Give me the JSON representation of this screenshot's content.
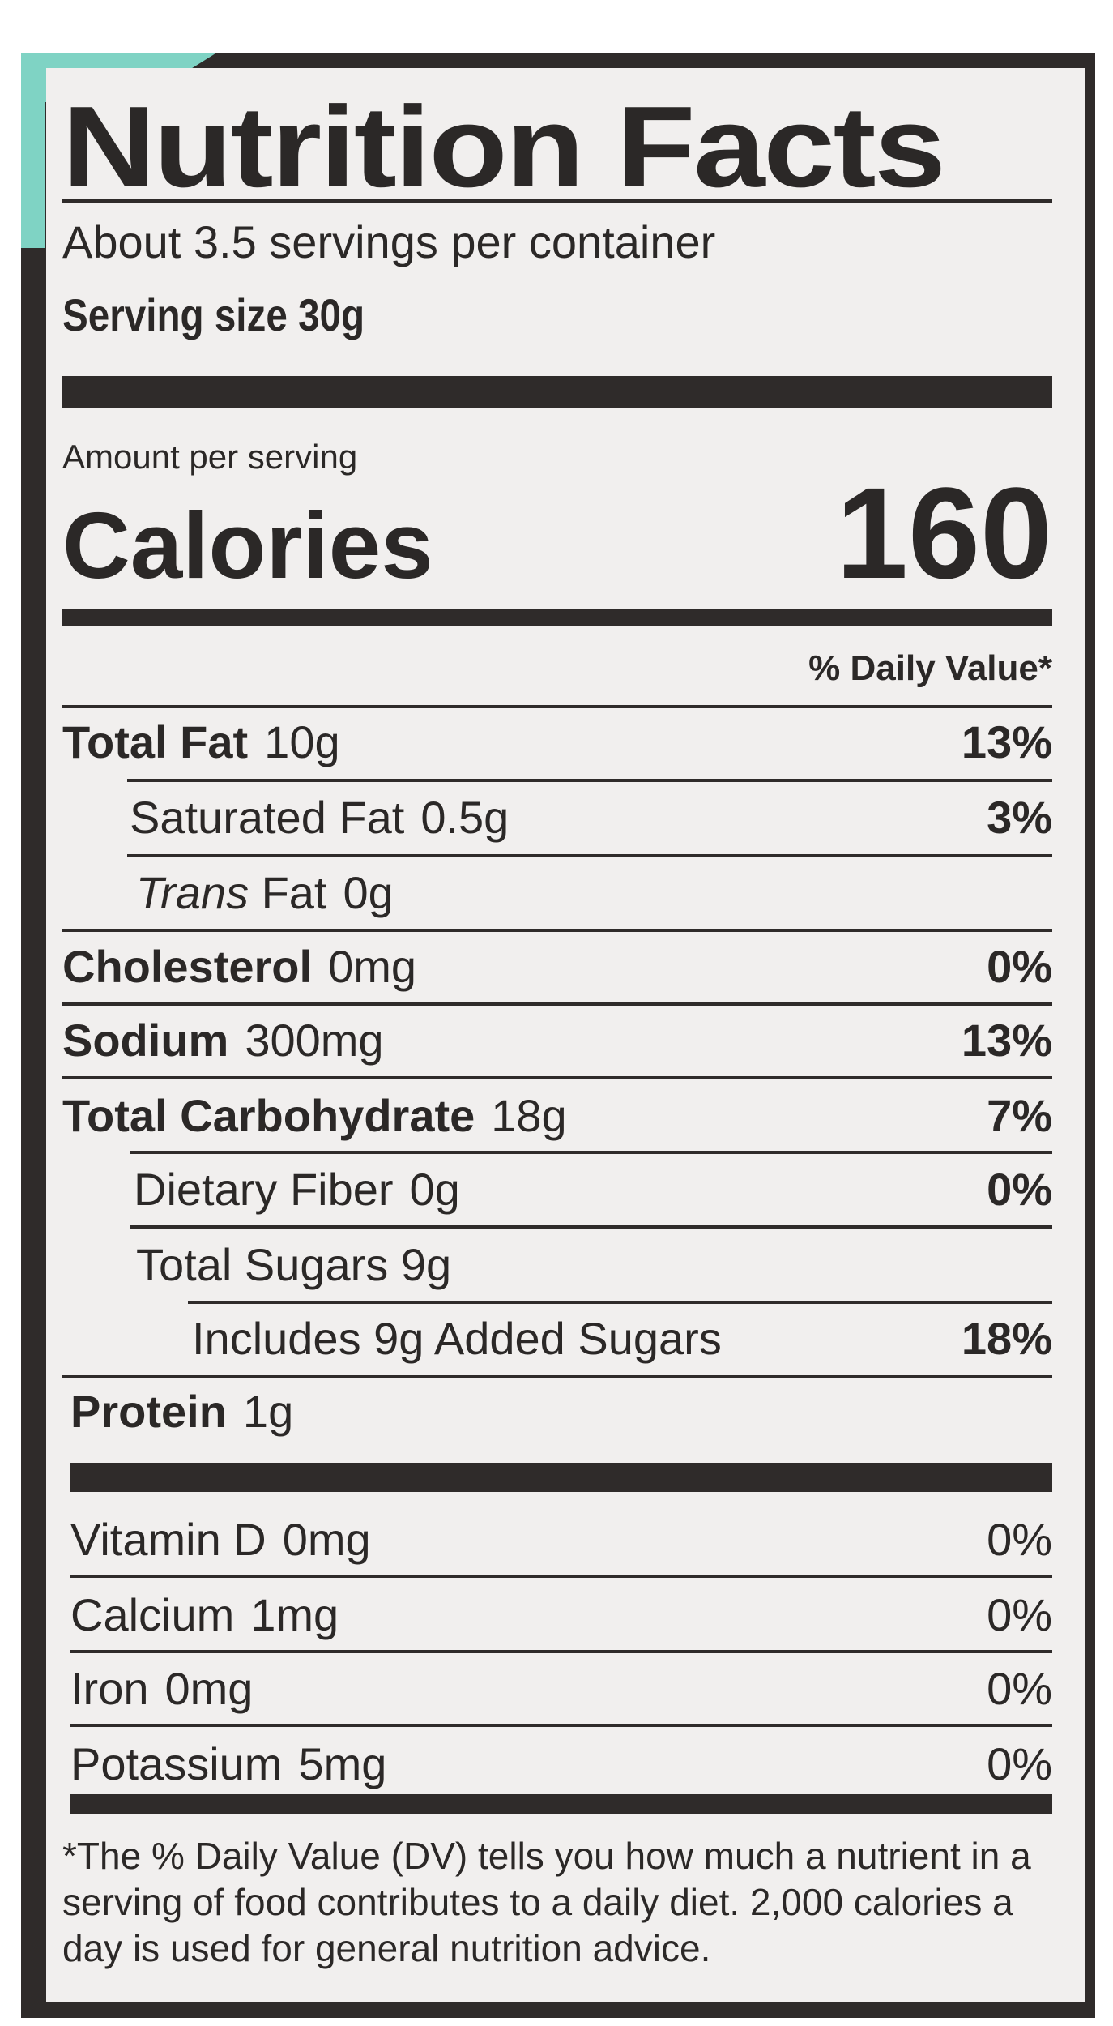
{
  "label": {
    "title": "Nutrition Facts",
    "servings_per_container": "About 3.5 servings per container",
    "serving_size": "Serving size 30g",
    "amount_per_serving": "Amount per serving",
    "calories_label": "Calories",
    "calories_value": "160",
    "daily_value_header": "% Daily Value*",
    "nutrients": [
      {
        "name": "Total Fat",
        "amount": "10g",
        "dv": "13%"
      },
      {
        "name": "Saturated Fat",
        "amount": "0.5g",
        "dv": "3%"
      },
      {
        "name_italic": "Trans",
        "name": "Fat",
        "amount": "0g"
      },
      {
        "name": "Cholesterol",
        "amount": "0mg",
        "dv": "0%"
      },
      {
        "name": "Sodium",
        "amount": "300mg",
        "dv": "13%"
      },
      {
        "name": "Total Carbohydrate",
        "amount": "18g",
        "dv": "7%"
      },
      {
        "name": "Dietary Fiber",
        "amount": "0g",
        "dv": "0%"
      },
      {
        "name": "Total Sugars 9g"
      },
      {
        "name": "Includes 9g Added Sugars",
        "dv": "18%"
      },
      {
        "name": "Protein",
        "amount": "1g"
      }
    ],
    "vitamins": [
      {
        "name": "Vitamin D",
        "amount": "0mg",
        "dv": "0%"
      },
      {
        "name": "Calcium",
        "amount": "1mg",
        "dv": "0%"
      },
      {
        "name": "Iron",
        "amount": "0mg",
        "dv": "0%"
      },
      {
        "name": "Potassium",
        "amount": "5mg",
        "dv": "0%"
      }
    ],
    "footnote": "*The % Daily Value (DV) tells you how much a nutrient in a serving of food contributes to a daily diet. 2,000 calories a day is used for general nutrition advice."
  },
  "colors": {
    "ink": "#2f2b2a",
    "paper": "#f1efee",
    "accent_teal": "#7fd3c4"
  }
}
